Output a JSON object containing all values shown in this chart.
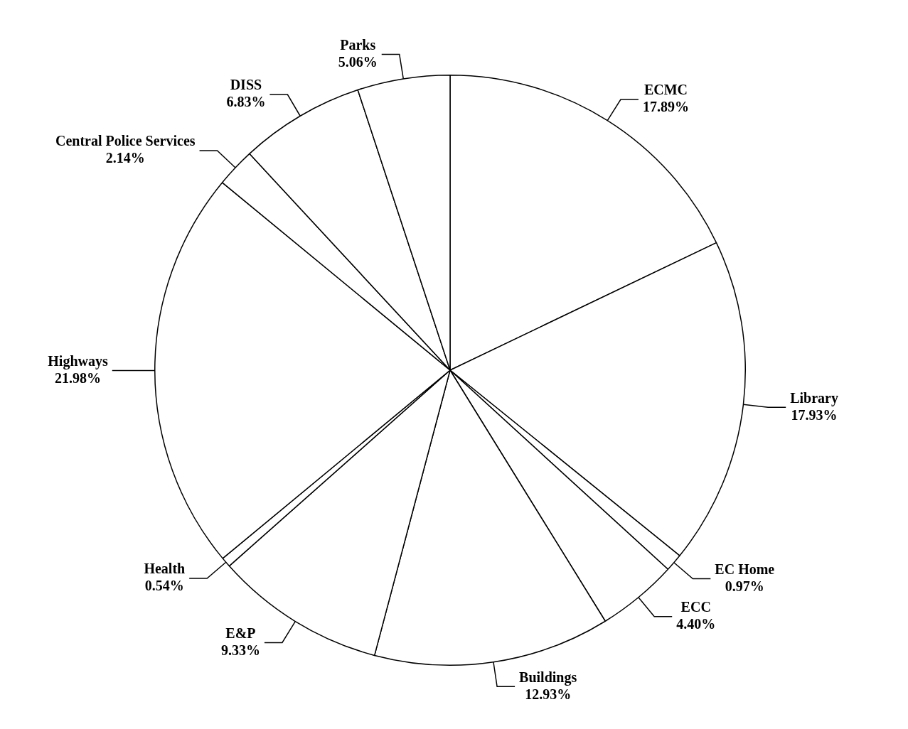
{
  "chart_data": {
    "type": "pie",
    "categories": [
      "ECMC",
      "Library",
      "EC Home",
      "ECC",
      "Buildings",
      "E&P",
      "Health",
      "Highways",
      "Central Police Services",
      "DISS",
      "Parks"
    ],
    "values": [
      17.89,
      17.93,
      0.97,
      4.4,
      12.93,
      9.33,
      0.54,
      21.98,
      2.14,
      6.83,
      5.06
    ],
    "colors": [
      "#ffffff",
      "#ffffff",
      "#ffffff",
      "#ffffff",
      "#ffffff",
      "#ffffff",
      "#ffffff",
      "#ffffff",
      "#ffffff",
      "#ffffff",
      "#ffffff"
    ],
    "value_labels": [
      "17.89%",
      "17.93%",
      "0.97%",
      "4.40%",
      "12.93%",
      "9.33%",
      "0.54%",
      "21.98%",
      "2.14%",
      "6.83%",
      "5.06%"
    ]
  }
}
